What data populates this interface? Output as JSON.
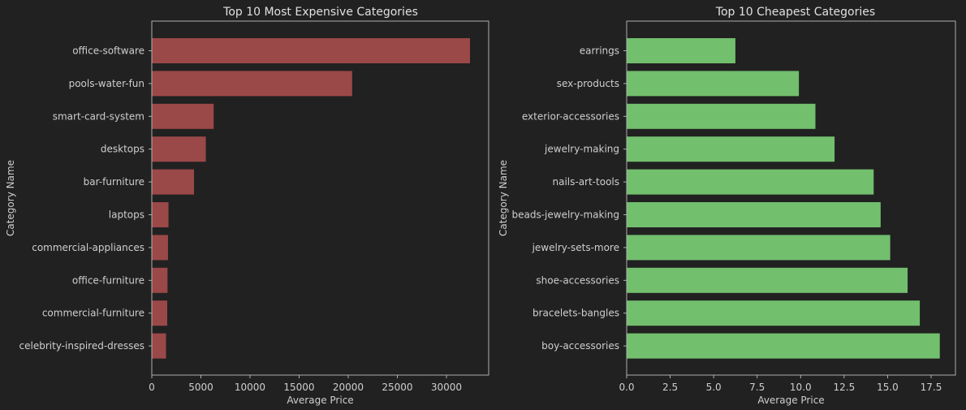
{
  "chart_data": [
    {
      "type": "bar",
      "orientation": "horizontal",
      "title": "Top 10 Most Expensive Categories",
      "xlabel": "Average Price",
      "ylabel": "Category Name",
      "categories": [
        "office-software",
        "pools-water-fun",
        "smart-card-system",
        "desktops",
        "bar-furniture",
        "laptops",
        "commercial-appliances",
        "office-furniture",
        "commercial-furniture",
        "celebrity-inspired-dresses"
      ],
      "values": [
        32400,
        20400,
        6300,
        5500,
        4300,
        1700,
        1650,
        1600,
        1570,
        1450
      ],
      "xlim": [
        0,
        34300
      ],
      "xticks": [
        0,
        5000,
        10000,
        15000,
        20000,
        25000,
        30000
      ],
      "color": "#9b4848",
      "grid": false
    },
    {
      "type": "bar",
      "orientation": "horizontal",
      "title": "Top 10 Cheapest Categories",
      "xlabel": "Average Price",
      "ylabel": "Category Name",
      "categories": [
        "earrings",
        "sex-products",
        "exterior-accessories",
        "jewelry-making",
        "nails-art-tools",
        "beads-jewelry-making",
        "jewelry-sets-more",
        "shoe-accessories",
        "bracelets-bangles",
        "boy-accessories"
      ],
      "values": [
        6.25,
        9.9,
        10.85,
        11.95,
        14.2,
        14.6,
        15.15,
        16.15,
        16.85,
        18.0
      ],
      "xlim": [
        0,
        18.9
      ],
      "xticks": [
        0.0,
        2.5,
        5.0,
        7.5,
        10.0,
        12.5,
        15.0,
        17.5
      ],
      "tick_labels": [
        "0.0",
        "2.5",
        "5.0",
        "7.5",
        "10.0",
        "12.5",
        "15.0",
        "17.5"
      ],
      "color": "#72bf6d",
      "grid": false
    }
  ]
}
